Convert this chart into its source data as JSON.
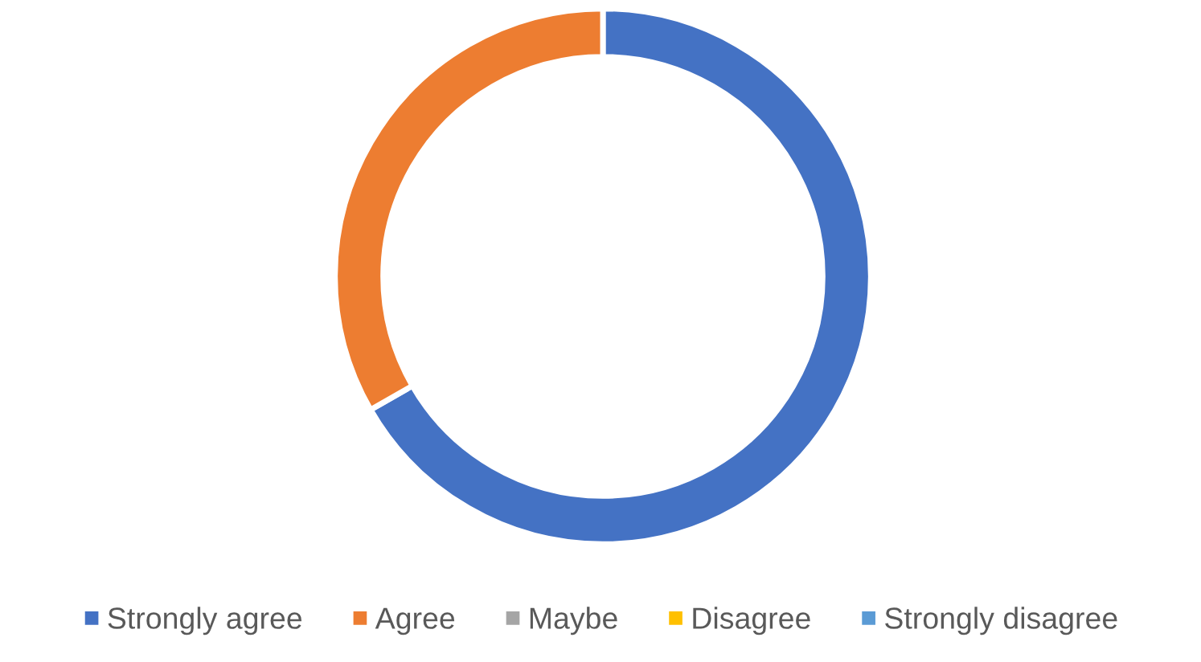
{
  "chart_data": {
    "type": "donut",
    "categories": [
      "Strongly agree",
      "Agree",
      "Maybe",
      "Disagree",
      "Strongly disagree"
    ],
    "values": [
      66.7,
      33.3,
      0,
      0,
      0
    ],
    "colors": [
      "#4472c4",
      "#ed7d31",
      "#a5a5a5",
      "#ffc000",
      "#5b9bd5"
    ],
    "legend": "bottom"
  }
}
